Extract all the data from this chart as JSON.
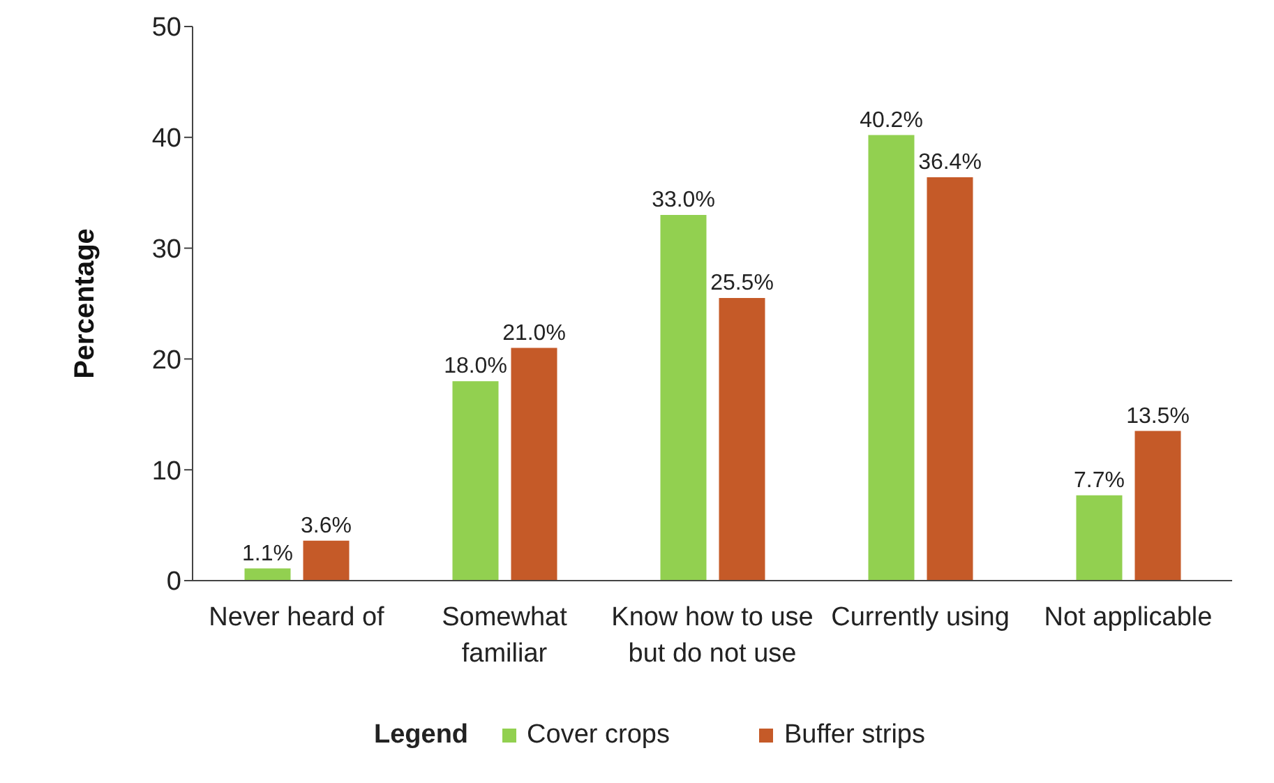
{
  "chart_data": {
    "type": "bar",
    "ylabel": "Percentage",
    "legend_title": "Legend",
    "categories": [
      "Never heard of",
      "Somewhat familiar",
      "Know how to use but do not use",
      "Currently using",
      "Not applicable"
    ],
    "series": [
      {
        "name": "Cover crops",
        "color": "#92d050",
        "values": [
          1.1,
          18.0,
          33.0,
          40.2,
          7.7
        ],
        "value_labels": [
          "1.1%",
          "18.0%",
          "33.0%",
          "40.2%",
          "7.7%"
        ]
      },
      {
        "name": "Buffer strips",
        "color": "#c55a28",
        "values": [
          3.6,
          21.0,
          25.5,
          36.4,
          13.5
        ],
        "value_labels": [
          "3.6%",
          "21.0%",
          "25.5%",
          "36.4%",
          "13.5%"
        ]
      }
    ],
    "ylim": [
      0,
      50
    ],
    "yticks": [
      0,
      10,
      20,
      30,
      40,
      50
    ],
    "grid": false,
    "legend": "bottom"
  }
}
